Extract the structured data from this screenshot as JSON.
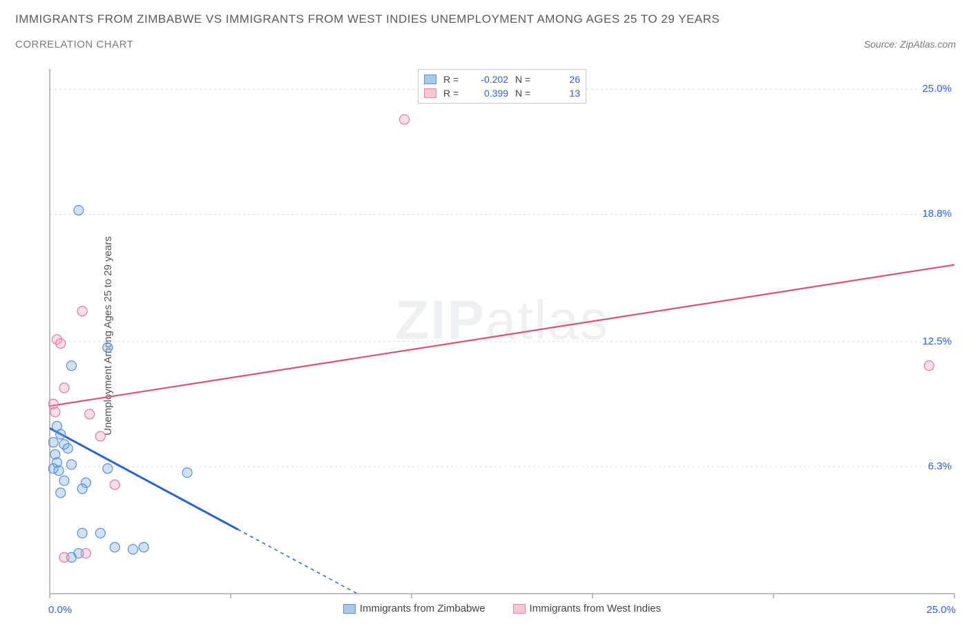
{
  "header": {
    "title": "IMMIGRANTS FROM ZIMBABWE VS IMMIGRANTS FROM WEST INDIES UNEMPLOYMENT AMONG AGES 25 TO 29 YEARS",
    "subtitle": "CORRELATION CHART",
    "source": "Source: ZipAtlas.com"
  },
  "y_axis_label": "Unemployment Among Ages 25 to 29 years",
  "watermark": {
    "a": "ZIP",
    "b": "atlas"
  },
  "legend_top": {
    "rows": [
      {
        "swatch_fill": "#a8c8f0",
        "swatch_border": "#5b8fd6",
        "r_label": "R =",
        "r_value": "-0.202",
        "n_label": "N =",
        "n_value": "26"
      },
      {
        "swatch_fill": "#f6c7d3",
        "swatch_border": "#e48aa4",
        "r_label": "R =",
        "r_value": "0.399",
        "n_label": "N =",
        "n_value": "13"
      }
    ]
  },
  "legend_bottom": {
    "items": [
      {
        "swatch_fill": "#a8c8f0",
        "swatch_border": "#5b8fd6",
        "label": "Immigrants from Zimbabwe"
      },
      {
        "swatch_fill": "#f6c7d3",
        "swatch_border": "#e48aa4",
        "label": "Immigrants from West Indies"
      }
    ]
  },
  "chart": {
    "type": "scatter",
    "background_color": "#ffffff",
    "grid_color": "#d9d9d9",
    "axis_color": "#9a9a9a",
    "tick_color": "#9a9a9a",
    "xlim": [
      0,
      25
    ],
    "ylim": [
      0,
      26
    ],
    "x_ticks": [
      0,
      5,
      10,
      15,
      20,
      25
    ],
    "x_tick_labels": {
      "left": "0.0%",
      "right": "25.0%"
    },
    "y_ticks": [
      {
        "v": 6.3,
        "label": "6.3%"
      },
      {
        "v": 12.5,
        "label": "12.5%"
      },
      {
        "v": 18.8,
        "label": "18.8%"
      },
      {
        "v": 25.0,
        "label": "25.0%"
      }
    ],
    "marker_radius": 7,
    "marker_stroke_width": 1.2,
    "series": [
      {
        "name": "zimbabwe",
        "fill": "rgba(120,170,230,0.35)",
        "stroke": "#5b8fd6",
        "points": [
          [
            0.2,
            8.3
          ],
          [
            0.3,
            7.9
          ],
          [
            0.1,
            7.5
          ],
          [
            0.4,
            7.4
          ],
          [
            0.5,
            7.2
          ],
          [
            0.15,
            6.9
          ],
          [
            0.2,
            6.5
          ],
          [
            0.6,
            6.4
          ],
          [
            0.1,
            6.2
          ],
          [
            0.25,
            6.1
          ],
          [
            0.4,
            5.6
          ],
          [
            1.0,
            5.5
          ],
          [
            0.9,
            5.2
          ],
          [
            0.3,
            5.0
          ],
          [
            0.6,
            1.8
          ],
          [
            3.8,
            6.0
          ],
          [
            1.6,
            6.2
          ],
          [
            0.8,
            19.0
          ],
          [
            1.6,
            12.2
          ],
          [
            0.6,
            11.3
          ],
          [
            1.8,
            2.3
          ],
          [
            2.3,
            2.2
          ],
          [
            2.6,
            2.3
          ],
          [
            0.9,
            3.0
          ],
          [
            1.4,
            3.0
          ],
          [
            0.8,
            2.0
          ]
        ],
        "trend": {
          "x1": 0,
          "y1": 8.2,
          "x2": 8.5,
          "y2": 0,
          "color": "#2b63c9",
          "width": 3,
          "dash_after_x": 5.2
        }
      },
      {
        "name": "west_indies",
        "fill": "rgba(240,160,185,0.35)",
        "stroke": "#e07d9c",
        "points": [
          [
            0.2,
            12.6
          ],
          [
            0.3,
            12.4
          ],
          [
            0.1,
            9.4
          ],
          [
            0.15,
            9.0
          ],
          [
            0.4,
            10.2
          ],
          [
            1.1,
            8.9
          ],
          [
            1.4,
            7.8
          ],
          [
            0.9,
            14.0
          ],
          [
            9.8,
            23.5
          ],
          [
            24.3,
            11.3
          ],
          [
            1.8,
            5.4
          ],
          [
            1.0,
            2.0
          ],
          [
            0.4,
            1.8
          ]
        ],
        "trend": {
          "x1": 0,
          "y1": 9.3,
          "x2": 25,
          "y2": 16.3,
          "color": "#e0506f",
          "width": 2.2
        }
      }
    ]
  }
}
